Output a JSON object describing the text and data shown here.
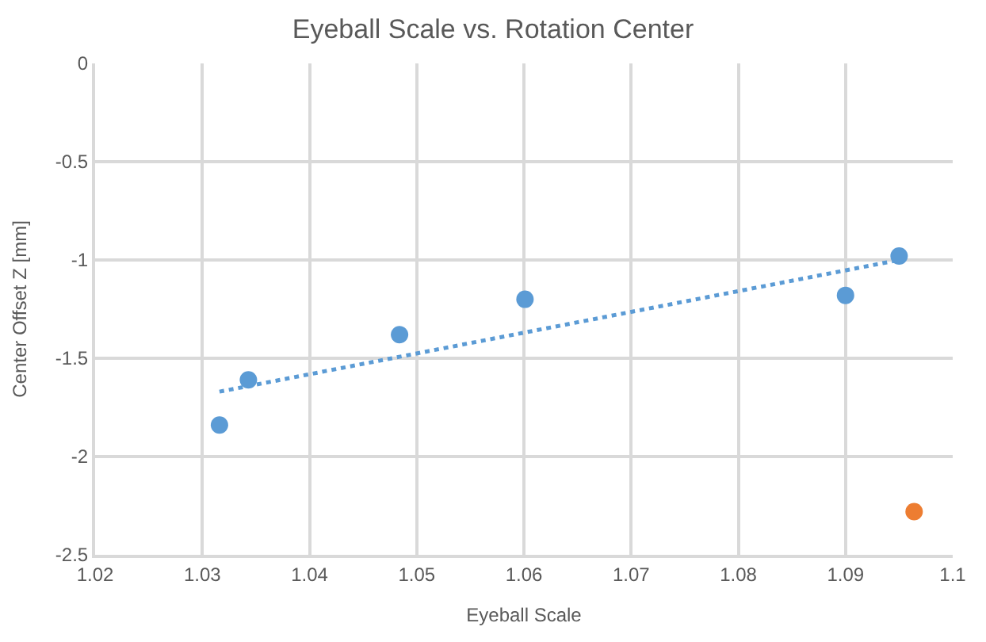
{
  "chart_data": {
    "type": "scatter",
    "title": "Eyeball Scale vs. Rotation Center",
    "xlabel": "Eyeball Scale",
    "ylabel": "Center Offset Z [mm]",
    "xlim": [
      1.02,
      1.1
    ],
    "xticks": [
      {
        "value": 1.02,
        "label": "1.02"
      },
      {
        "value": 1.03,
        "label": "1.03"
      },
      {
        "value": 1.04,
        "label": "1.04"
      },
      {
        "value": 1.05,
        "label": "1.05"
      },
      {
        "value": 1.06,
        "label": "1.06"
      },
      {
        "value": 1.07,
        "label": "1.07"
      },
      {
        "value": 1.08,
        "label": "1.08"
      },
      {
        "value": 1.09,
        "label": "1.09"
      },
      {
        "value": 1.1,
        "label": "1.1"
      }
    ],
    "ylim": [
      -2.5,
      0
    ],
    "yticks": [
      {
        "value": -2.5,
        "label": "-2.5"
      },
      {
        "value": -2,
        "label": "-2"
      },
      {
        "value": -1.5,
        "label": "-1.5"
      },
      {
        "value": -1,
        "label": "-1"
      },
      {
        "value": -0.5,
        "label": "-0.5"
      },
      {
        "value": 0,
        "label": "0"
      }
    ],
    "grid": true,
    "marker": "circle",
    "series": [
      {
        "color": "#5b9bd5",
        "x": [
          1.0316,
          1.0343,
          1.0484,
          1.0601,
          1.09,
          1.095
        ],
        "values": [
          -1.84,
          -1.61,
          -1.38,
          -1.2,
          -1.18,
          -0.98
        ]
      },
      {
        "color": "#ed7d31",
        "x": [
          1.0964
        ],
        "values": [
          -2.28
        ]
      },
      {
        "type": "line",
        "line_style": "dotted",
        "marker": "none",
        "color": "#5b9bd5",
        "x": [
          1.0316,
          1.095
        ],
        "values": [
          -1.67,
          -1.0
        ]
      }
    ]
  }
}
